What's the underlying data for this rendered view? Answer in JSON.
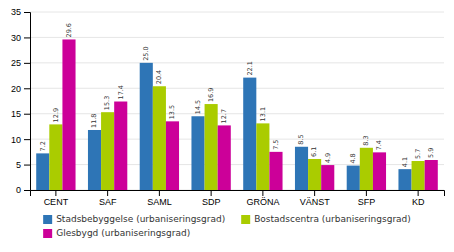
{
  "chart_data": {
    "type": "bar",
    "categories": [
      "CENT",
      "SAF",
      "SAML",
      "SDP",
      "GRÖNA",
      "VÄNST",
      "SFP",
      "KD"
    ],
    "series": [
      {
        "name": "Stadsbebyggelse (urbaniseringsgrad)",
        "color": "#2E75B6",
        "values": [
          7.2,
          11.8,
          25.0,
          14.5,
          22.1,
          8.5,
          4.8,
          4.1
        ],
        "value_labels": [
          "7.2",
          "11.8",
          "25.0",
          "14.5",
          "22.1",
          "8.5",
          "4.8",
          "4.1"
        ]
      },
      {
        "name": "Bostadscentra (urbaniseringsgrad)",
        "color": "#AACC00",
        "values": [
          12.9,
          15.3,
          20.4,
          16.9,
          13.1,
          6.1,
          8.3,
          5.7
        ],
        "value_labels": [
          "12.9",
          "15.3",
          "20.4",
          "16.9",
          "13.1",
          "6.1",
          "8.3",
          "5.7"
        ]
      },
      {
        "name": "Glesbygd (urbaniseringsgrad)",
        "color": "#CC0099",
        "values": [
          29.6,
          17.4,
          13.5,
          12.7,
          7.5,
          4.9,
          7.4,
          5.9
        ],
        "value_labels": [
          "29.6",
          "17.4",
          "13.5",
          "12.7",
          "7.5",
          "4.9",
          "7.4",
          "5.9"
        ]
      }
    ],
    "ylim": [
      0,
      35
    ],
    "yticks": [
      0,
      5,
      10,
      15,
      20,
      25,
      30,
      35
    ],
    "grid": true,
    "data_labels": true,
    "legend": "bottom"
  }
}
